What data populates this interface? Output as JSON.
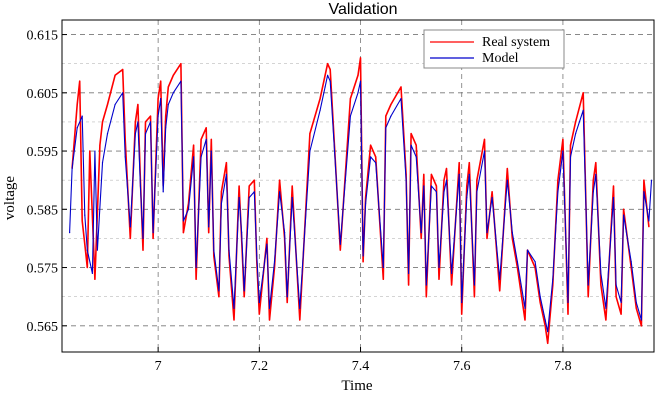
{
  "chart_data": {
    "type": "line",
    "title": "Validation",
    "xlabel": "Time",
    "ylabel": "voltage",
    "xlim": [
      6.81,
      7.98
    ],
    "ylim": [
      0.5605,
      0.6175
    ],
    "xticks": [
      7,
      7.2,
      7.4,
      7.6,
      7.8
    ],
    "xtick_labels": [
      "7",
      "7.2",
      "7.4",
      "7.6",
      "7.8"
    ],
    "yticks": [
      0.565,
      0.575,
      0.585,
      0.595,
      0.605,
      0.615
    ],
    "ytick_labels": [
      "0.565",
      "0.575",
      "0.585",
      "0.595",
      "0.605",
      "0.615"
    ],
    "ygrid_minor": [
      0.57,
      0.58,
      0.59,
      0.6,
      0.61
    ],
    "grid": true,
    "legend": "top-right",
    "colors": {
      "real": "#ff0000",
      "model": "#0000cc"
    },
    "series": [
      {
        "name": "Real system",
        "color": "#ff0000",
        "x": [
          6.83,
          6.84,
          6.845,
          6.85,
          6.855,
          6.86,
          6.865,
          6.875,
          6.885,
          6.89,
          6.9,
          6.915,
          6.93,
          6.935,
          6.945,
          6.955,
          6.96,
          6.965,
          6.97,
          6.975,
          6.985,
          6.99,
          7.0,
          7.005,
          7.01,
          7.015,
          7.02,
          7.03,
          7.045,
          7.05,
          7.06,
          7.07,
          7.075,
          7.085,
          7.095,
          7.1,
          7.105,
          7.11,
          7.12,
          7.125,
          7.135,
          7.14,
          7.15,
          7.16,
          7.165,
          7.17,
          7.18,
          7.19,
          7.195,
          7.2,
          7.215,
          7.22,
          7.23,
          7.24,
          7.25,
          7.255,
          7.265,
          7.28,
          7.3,
          7.32,
          7.33,
          7.335,
          7.34,
          7.36,
          7.38,
          7.395,
          7.4,
          7.405,
          7.41,
          7.42,
          7.43,
          7.445,
          7.45,
          7.46,
          7.48,
          7.49,
          7.495,
          7.5,
          7.51,
          7.52,
          7.525,
          7.53,
          7.54,
          7.55,
          7.555,
          7.565,
          7.57,
          7.58,
          7.595,
          7.6,
          7.61,
          7.615,
          7.625,
          7.63,
          7.645,
          7.65,
          7.66,
          7.675,
          7.69,
          7.7,
          7.71,
          7.725,
          7.73,
          7.745,
          7.755,
          7.765,
          7.77,
          7.78,
          7.79,
          7.8,
          7.81,
          7.815,
          7.825,
          7.84,
          7.85,
          7.86,
          7.865,
          7.875,
          7.885,
          7.9,
          7.905,
          7.915,
          7.92,
          7.935,
          7.945,
          7.955,
          7.96,
          7.97
        ],
        "y": [
          0.592,
          0.603,
          0.607,
          0.583,
          0.579,
          0.575,
          0.595,
          0.573,
          0.596,
          0.6,
          0.603,
          0.608,
          0.609,
          0.597,
          0.58,
          0.6,
          0.603,
          0.59,
          0.578,
          0.6,
          0.601,
          0.58,
          0.604,
          0.607,
          0.589,
          0.601,
          0.606,
          0.608,
          0.61,
          0.581,
          0.586,
          0.596,
          0.573,
          0.597,
          0.599,
          0.581,
          0.597,
          0.577,
          0.57,
          0.588,
          0.593,
          0.577,
          0.566,
          0.589,
          0.58,
          0.57,
          0.589,
          0.59,
          0.576,
          0.567,
          0.58,
          0.566,
          0.575,
          0.59,
          0.58,
          0.569,
          0.589,
          0.566,
          0.598,
          0.604,
          0.608,
          0.61,
          0.609,
          0.578,
          0.604,
          0.608,
          0.611,
          0.576,
          0.587,
          0.596,
          0.594,
          0.573,
          0.601,
          0.603,
          0.606,
          0.591,
          0.572,
          0.598,
          0.596,
          0.58,
          0.591,
          0.57,
          0.591,
          0.589,
          0.573,
          0.59,
          0.592,
          0.572,
          0.593,
          0.567,
          0.589,
          0.593,
          0.57,
          0.59,
          0.597,
          0.58,
          0.588,
          0.571,
          0.592,
          0.58,
          0.575,
          0.566,
          0.578,
          0.575,
          0.569,
          0.565,
          0.562,
          0.572,
          0.59,
          0.597,
          0.567,
          0.596,
          0.6,
          0.605,
          0.57,
          0.59,
          0.593,
          0.572,
          0.566,
          0.589,
          0.57,
          0.567,
          0.585,
          0.575,
          0.568,
          0.565,
          0.59,
          0.582
        ]
      },
      {
        "name": "Model",
        "color": "#0000cc",
        "x": [
          6.825,
          6.83,
          6.84,
          6.85,
          6.855,
          6.86,
          6.87,
          6.875,
          6.88,
          6.89,
          6.9,
          6.915,
          6.93,
          6.935,
          6.945,
          6.955,
          6.96,
          6.965,
          6.97,
          6.975,
          6.985,
          6.99,
          7.0,
          7.005,
          7.01,
          7.015,
          7.02,
          7.03,
          7.045,
          7.05,
          7.06,
          7.07,
          7.075,
          7.085,
          7.095,
          7.1,
          7.105,
          7.11,
          7.12,
          7.125,
          7.135,
          7.14,
          7.15,
          7.16,
          7.165,
          7.17,
          7.18,
          7.19,
          7.195,
          7.2,
          7.215,
          7.22,
          7.23,
          7.24,
          7.25,
          7.255,
          7.265,
          7.28,
          7.3,
          7.32,
          7.33,
          7.335,
          7.34,
          7.36,
          7.38,
          7.395,
          7.4,
          7.405,
          7.41,
          7.42,
          7.43,
          7.445,
          7.45,
          7.46,
          7.48,
          7.49,
          7.495,
          7.5,
          7.51,
          7.52,
          7.525,
          7.53,
          7.54,
          7.55,
          7.555,
          7.565,
          7.57,
          7.58,
          7.595,
          7.6,
          7.61,
          7.615,
          7.625,
          7.63,
          7.645,
          7.65,
          7.66,
          7.675,
          7.69,
          7.7,
          7.71,
          7.725,
          7.73,
          7.745,
          7.755,
          7.765,
          7.77,
          7.78,
          7.79,
          7.8,
          7.81,
          7.815,
          7.825,
          7.84,
          7.85,
          7.86,
          7.865,
          7.875,
          7.885,
          7.9,
          7.905,
          7.915,
          7.92,
          7.935,
          7.945,
          7.955,
          7.96,
          7.97,
          7.975
        ],
        "y": [
          0.581,
          0.592,
          0.599,
          0.601,
          0.584,
          0.578,
          0.574,
          0.595,
          0.578,
          0.593,
          0.598,
          0.603,
          0.605,
          0.594,
          0.582,
          0.598,
          0.6,
          0.589,
          0.58,
          0.598,
          0.6,
          0.581,
          0.601,
          0.604,
          0.588,
          0.599,
          0.603,
          0.605,
          0.607,
          0.583,
          0.585,
          0.594,
          0.575,
          0.594,
          0.597,
          0.582,
          0.595,
          0.578,
          0.571,
          0.586,
          0.591,
          0.578,
          0.568,
          0.587,
          0.581,
          0.571,
          0.587,
          0.588,
          0.577,
          0.569,
          0.579,
          0.568,
          0.576,
          0.588,
          0.581,
          0.57,
          0.587,
          0.568,
          0.595,
          0.602,
          0.606,
          0.608,
          0.607,
          0.579,
          0.601,
          0.605,
          0.607,
          0.577,
          0.586,
          0.594,
          0.593,
          0.575,
          0.599,
          0.601,
          0.604,
          0.59,
          0.574,
          0.596,
          0.594,
          0.581,
          0.589,
          0.572,
          0.589,
          0.588,
          0.575,
          0.588,
          0.59,
          0.574,
          0.591,
          0.569,
          0.587,
          0.591,
          0.572,
          0.588,
          0.595,
          0.581,
          0.587,
          0.573,
          0.59,
          0.581,
          0.576,
          0.568,
          0.578,
          0.576,
          0.57,
          0.566,
          0.564,
          0.573,
          0.588,
          0.595,
          0.569,
          0.594,
          0.598,
          0.602,
          0.572,
          0.588,
          0.591,
          0.574,
          0.568,
          0.587,
          0.572,
          0.569,
          0.584,
          0.576,
          0.569,
          0.566,
          0.588,
          0.583,
          0.59
        ]
      }
    ]
  }
}
